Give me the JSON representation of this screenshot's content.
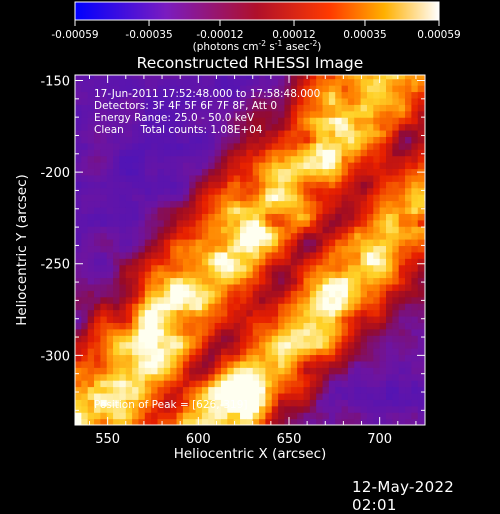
{
  "colorbar": {
    "tick_labels": [
      "-0.00059",
      "-0.00035",
      "-0.00012",
      "0.00012",
      "0.00035",
      "0.00059"
    ],
    "unit_label_prefix": "(photons cm",
    "unit_sup1": "-2",
    "unit_mid": " s",
    "unit_sup2": "-1",
    "unit_mid2": " asec",
    "unit_sup3": "-2",
    "unit_suffix": ")",
    "range": [
      -0.00059,
      0.00059
    ]
  },
  "chart_data": {
    "type": "heatmap",
    "title": "Reconstructed RHESSI Image",
    "xlabel": "Heliocentric X (arcsec)",
    "ylabel": "Heliocentric Y (arcsec)",
    "xlim": [
      532,
      725
    ],
    "ylim": [
      -338,
      -147
    ],
    "x_ticks": [
      550,
      600,
      650,
      700
    ],
    "y_ticks": [
      -150,
      -200,
      -250,
      -300
    ],
    "annotations": [
      "17-Jun-2011 17:52:48.000 to 17:58:48.000",
      "Detectors: 3F 4F 5F 6F 7F 8F, Att 0",
      "Energy Range: 25.0 - 50.0 keV",
      "Clean     Total counts: 1.08E+04"
    ],
    "peak_label": "Position of Peak = [626,-319]",
    "peak": [
      626,
      -319
    ],
    "colormap": "blue-purple-red-yellow-white",
    "bands": [
      {
        "x0": 540,
        "y0": -330,
        "x1": 690,
        "y1": -160,
        "width_arcsec": 20,
        "strength": 1.0
      },
      {
        "x0": 615,
        "y0": -330,
        "x1": 725,
        "y1": -215,
        "width_arcsec": 18,
        "strength": 0.95
      }
    ]
  },
  "footer": {
    "timestamp": "12-May-2022 02:01"
  }
}
